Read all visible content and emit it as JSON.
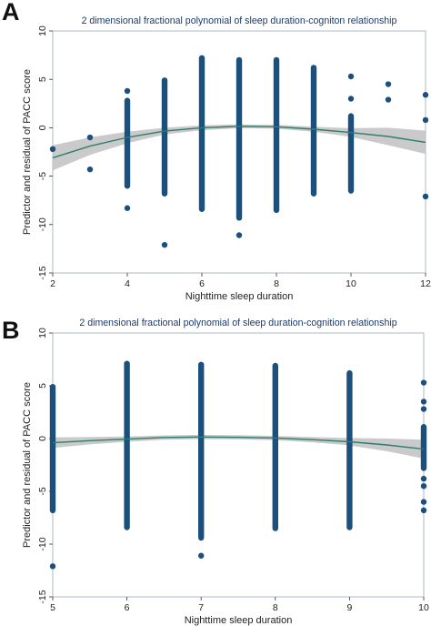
{
  "panels": [
    {
      "letter": "A"
    },
    {
      "letter": "B"
    }
  ],
  "colors": {
    "points": "#1b4f7c",
    "fit_line": "#2f7d6d",
    "ci_band": "#c4c4c4",
    "frame": "#9aa8b8",
    "title": "#1b3a6b"
  },
  "chart_data": [
    {
      "type": "scatter",
      "title": "2 dimensional fractional polynomial of sleep duration-cogniton relationship",
      "xlabel": "Nighttime sleep duration",
      "ylabel": "Predictor and residual of PACC score",
      "xlim": [
        2,
        12
      ],
      "ylim": [
        -15,
        10
      ],
      "xticks": [
        2,
        4,
        6,
        8,
        10,
        12
      ],
      "yticks": [
        -15,
        -10,
        -5,
        0,
        5,
        10
      ],
      "grid": false,
      "columns": [
        {
          "x": 2,
          "min": -2.2,
          "max": -2.2
        },
        {
          "x": 3,
          "min": -1.0,
          "max": -1.0
        },
        {
          "x": 4,
          "min": -6.0,
          "max": 2.8
        },
        {
          "x": 5,
          "min": -6.8,
          "max": 4.9
        },
        {
          "x": 6,
          "min": -8.4,
          "max": 7.2
        },
        {
          "x": 7,
          "min": -9.3,
          "max": 7.0
        },
        {
          "x": 8,
          "min": -8.5,
          "max": 7.0
        },
        {
          "x": 9,
          "min": -6.8,
          "max": 6.2
        },
        {
          "x": 10,
          "min": -6.5,
          "max": 1.2
        }
      ],
      "outliers": [
        {
          "x": 3,
          "y": -4.3
        },
        {
          "x": 4,
          "y": 3.8
        },
        {
          "x": 4,
          "y": -8.3
        },
        {
          "x": 5,
          "y": -12.1
        },
        {
          "x": 7,
          "y": -11.1
        },
        {
          "x": 10,
          "y": 5.3
        },
        {
          "x": 10,
          "y": 3.0
        },
        {
          "x": 11,
          "y": 4.5
        },
        {
          "x": 11,
          "y": 2.9
        },
        {
          "x": 12,
          "y": 3.4
        },
        {
          "x": 12,
          "y": 0.8
        },
        {
          "x": 12,
          "y": -7.1
        }
      ],
      "fit": {
        "x": [
          2,
          3,
          4,
          5,
          6,
          7,
          8,
          9,
          10,
          11,
          12
        ],
        "y": [
          -3.1,
          -1.9,
          -1.0,
          -0.35,
          0.0,
          0.15,
          0.1,
          -0.15,
          -0.5,
          -0.9,
          -1.5
        ],
        "lower": [
          -4.4,
          -2.8,
          -1.6,
          -0.7,
          -0.25,
          -0.05,
          -0.1,
          -0.4,
          -0.95,
          -1.8,
          -2.7
        ],
        "upper": [
          -1.8,
          -1.0,
          -0.4,
          0.0,
          0.25,
          0.35,
          0.3,
          0.1,
          -0.05,
          0.0,
          -0.3
        ]
      }
    },
    {
      "type": "scatter",
      "title": "2 dimensional fractional polynomial of sleep duration-cognition relationship",
      "xlabel": "Nighttime sleep duration",
      "ylabel": "Predictor and residual of PACC score",
      "xlim": [
        5,
        10
      ],
      "ylim": [
        -15,
        10
      ],
      "xticks": [
        5,
        6,
        7,
        8,
        9,
        10
      ],
      "yticks": [
        -15,
        -10,
        -5,
        0,
        5,
        10
      ],
      "grid": false,
      "columns": [
        {
          "x": 5,
          "min": -6.8,
          "max": 4.9
        },
        {
          "x": 6,
          "min": -8.4,
          "max": 7.1
        },
        {
          "x": 7,
          "min": -9.4,
          "max": 7.0
        },
        {
          "x": 8,
          "min": -8.5,
          "max": 6.9
        },
        {
          "x": 9,
          "min": -8.4,
          "max": 6.2
        },
        {
          "x": 10,
          "min": -2.8,
          "max": 1.1
        }
      ],
      "outliers": [
        {
          "x": 5,
          "y": -12.1
        },
        {
          "x": 7,
          "y": -11.1
        },
        {
          "x": 10,
          "y": 5.3
        },
        {
          "x": 10,
          "y": 3.5
        },
        {
          "x": 10,
          "y": 2.8
        },
        {
          "x": 10,
          "y": -3.8
        },
        {
          "x": 10,
          "y": -4.5
        },
        {
          "x": 10,
          "y": -6.0
        },
        {
          "x": 10,
          "y": -6.8
        }
      ],
      "fit": {
        "x": [
          5,
          5.5,
          6,
          6.5,
          7,
          7.5,
          8,
          8.5,
          9,
          9.5,
          10
        ],
        "y": [
          -0.4,
          -0.2,
          -0.05,
          0.1,
          0.15,
          0.12,
          0.05,
          -0.1,
          -0.3,
          -0.6,
          -1.0
        ],
        "lower": [
          -0.9,
          -0.55,
          -0.3,
          -0.1,
          -0.05,
          -0.08,
          -0.15,
          -0.35,
          -0.65,
          -1.2,
          -1.9
        ],
        "upper": [
          0.1,
          0.15,
          0.2,
          0.3,
          0.35,
          0.32,
          0.25,
          0.15,
          0.05,
          0.0,
          -0.1
        ]
      }
    }
  ]
}
